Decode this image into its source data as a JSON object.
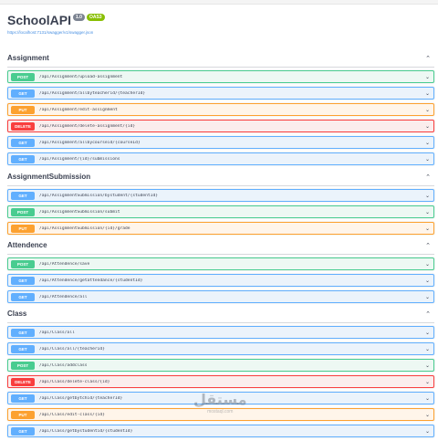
{
  "app": {
    "title": "SchoolAPI",
    "version_badge": "1.0",
    "oas_badge": "OAS3",
    "spec_url": "https://localhost:7131/swagger/v1/swagger.json"
  },
  "colors": {
    "post": "#49cc90",
    "get": "#61affe",
    "put": "#fca130",
    "delete": "#f93e3e"
  },
  "sections": [
    {
      "title": "Assignment",
      "ops": [
        {
          "method": "POST",
          "path": "/api/Assignment/upload-assignment"
        },
        {
          "method": "GET",
          "path": "/api/Assignment/allbyteacherid/{teacherId}"
        },
        {
          "method": "PUT",
          "path": "/api/Assignment/edit-assignment"
        },
        {
          "method": "DELETE",
          "path": "/api/Assignment/delete-assignment/{id}"
        },
        {
          "method": "GET",
          "path": "/api/Assignment/allbycourseid/{courseId}"
        },
        {
          "method": "GET",
          "path": "/api/Assignment/{id}/submissions"
        }
      ]
    },
    {
      "title": "AssignmentSubmission",
      "ops": [
        {
          "method": "GET",
          "path": "/api/AssignmentSubmission/bystudent/{studentId}"
        },
        {
          "method": "POST",
          "path": "/api/AssignmentSubmission/submit"
        },
        {
          "method": "PUT",
          "path": "/api/AssignmentSubmission/{id}/grade"
        }
      ]
    },
    {
      "title": "Attendence",
      "ops": [
        {
          "method": "POST",
          "path": "/api/Attendence/save"
        },
        {
          "method": "GET",
          "path": "/api/Attendence/getattendance/{studentId}"
        },
        {
          "method": "GET",
          "path": "/api/Attendence/all"
        }
      ]
    },
    {
      "title": "Class",
      "ops": [
        {
          "method": "GET",
          "path": "/api/Class/all"
        },
        {
          "method": "GET",
          "path": "/api/Class/all/{teacherId}"
        },
        {
          "method": "POST",
          "path": "/api/Class/addclass"
        },
        {
          "method": "DELETE",
          "path": "/api/Class/delete-class/{id}"
        },
        {
          "method": "GET",
          "path": "/api/Class/getbytchid/{teacherId}"
        },
        {
          "method": "PUT",
          "path": "/api/Class/edit-class/{id}"
        },
        {
          "method": "GET",
          "path": "/api/Class/getbystudentid/{studentId}"
        }
      ]
    }
  ],
  "watermark": {
    "arabic": "مستقل",
    "latin": "mostaql.com"
  }
}
